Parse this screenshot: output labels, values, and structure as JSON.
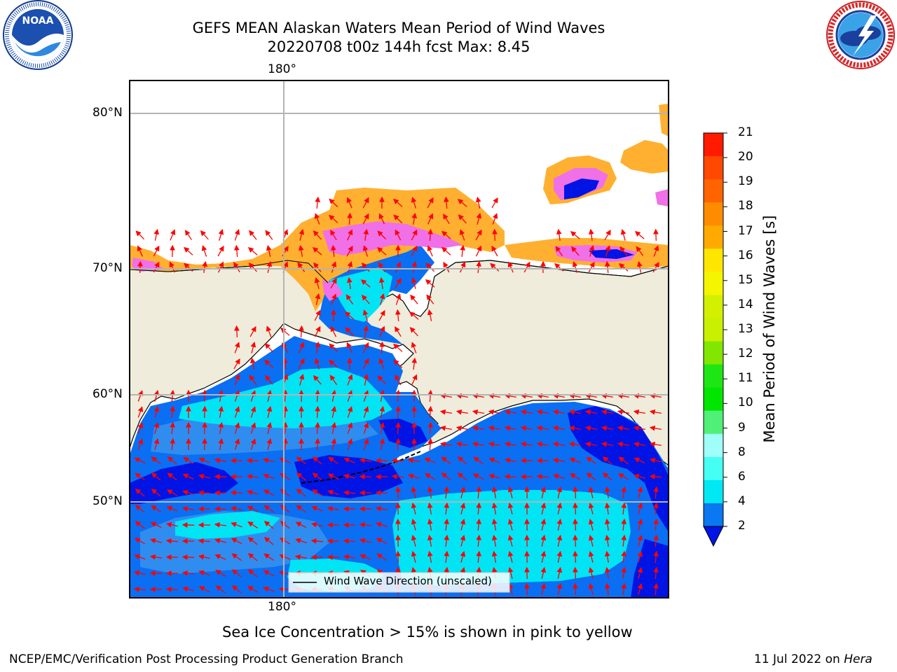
{
  "header": {
    "title_line1": "GEFS MEAN Alaskan Waters Mean Period of Wind Waves",
    "title_line2": "20220708 t00z 144h fcst   Max: 8.45"
  },
  "logos": {
    "left": "NOAA",
    "left_ring_text": "NATIONAL OCEANIC AND ATMOSPHERIC ADMINISTRATION · U.S. DEPARTMENT OF COMMERCE",
    "right_ring_text": "NATIONAL WEATHER SERVICE"
  },
  "map": {
    "lon_labels": [
      "180°",
      "180°"
    ],
    "lat_labels": [
      "80°N",
      "70°N",
      "60°N",
      "50°N"
    ],
    "legend_entry": "Wind Wave Direction (unscaled)",
    "colors": {
      "land": "#efecdc",
      "ocean_low": "#0a6ff2",
      "ocean_mid": "#2f8df0",
      "ocean_high": "#00e4f4",
      "ocean_lowest": "#0014e6",
      "ice_orange": "#ffb030",
      "ice_pink": "#f070e8",
      "arrow": "#ff0000",
      "grid": "#b4b4b4"
    }
  },
  "colorbar": {
    "label": "Mean Period of Wind Waves [s]",
    "ticks": [
      "21",
      "20",
      "19",
      "18",
      "17",
      "16",
      "15",
      "14",
      "13",
      "12",
      "11",
      "10",
      "9",
      "8",
      "6",
      "4",
      "2"
    ],
    "colors": [
      "#ff1a00",
      "#ff4800",
      "#ff6400",
      "#ff8c00",
      "#ffaa00",
      "#ffe600",
      "#f5f500",
      "#d2f000",
      "#c8f000",
      "#82e600",
      "#1ee614",
      "#00e600",
      "#50f078",
      "#9ffff8",
      "#46fff4",
      "#00e8f4",
      "#0a78f0"
    ],
    "extend_color": "#0014e6"
  },
  "caption": "Sea Ice Concentration > 15% is shown in pink to yellow",
  "footer": {
    "left": "NCEP/EMC/Verification Post Processing Product Generation Branch",
    "right_date": "11 Jul 2022 on ",
    "right_host": "Hera"
  }
}
